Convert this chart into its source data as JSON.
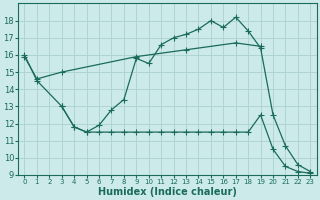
{
  "bg_color": "#cceaea",
  "grid_color": "#b0d4d4",
  "line_color": "#1a6b5a",
  "xlabel": "Humidex (Indice chaleur)",
  "ylim": [
    9,
    19
  ],
  "xlim": [
    -0.5,
    23.5
  ],
  "yticks": [
    9,
    10,
    11,
    12,
    13,
    14,
    15,
    16,
    17,
    18
  ],
  "xticks": [
    0,
    1,
    2,
    3,
    4,
    5,
    6,
    7,
    8,
    9,
    10,
    11,
    12,
    13,
    14,
    15,
    16,
    17,
    18,
    19,
    20,
    21,
    22,
    23
  ],
  "line1_x": [
    0,
    1,
    3,
    4,
    5,
    6,
    7,
    8,
    9,
    10,
    11,
    12,
    13,
    14,
    15,
    16,
    17,
    18,
    19,
    20,
    21,
    22,
    23
  ],
  "line1_y": [
    16.0,
    14.5,
    13.0,
    11.8,
    11.5,
    11.9,
    12.8,
    13.4,
    15.8,
    15.5,
    16.6,
    17.0,
    17.2,
    17.5,
    18.0,
    17.6,
    18.2,
    17.4,
    16.4,
    12.5,
    10.7,
    9.6,
    9.2
  ],
  "line2_x": [
    0,
    1,
    3,
    9,
    13,
    17,
    19
  ],
  "line2_y": [
    15.9,
    14.6,
    15.0,
    15.9,
    16.3,
    16.7,
    16.5
  ],
  "line3_x": [
    3,
    4,
    5,
    6,
    7,
    8,
    9,
    10,
    11,
    12,
    13,
    14,
    15,
    16,
    17,
    18,
    19,
    20,
    21,
    22,
    23
  ],
  "line3_y": [
    13.0,
    11.8,
    11.5,
    11.5,
    11.5,
    11.5,
    11.5,
    11.5,
    11.5,
    11.5,
    11.5,
    11.5,
    11.5,
    11.5,
    11.5,
    11.5,
    12.5,
    10.5,
    9.5,
    9.2,
    9.1
  ]
}
